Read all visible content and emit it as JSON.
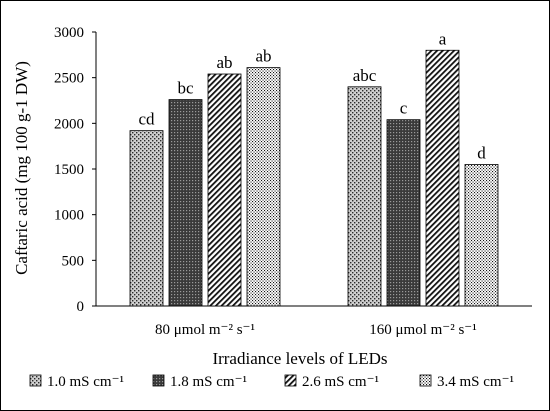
{
  "chart_data": {
    "type": "bar",
    "title": "",
    "xlabel": "Irradiance levels of LEDs",
    "ylabel": "Caftaric acid (mg 100 g-1 DW)",
    "ylim": [
      0,
      3000
    ],
    "yticks": [
      "0",
      "500",
      "1000",
      "1500",
      "2000",
      "2500",
      "3000"
    ],
    "grid": false,
    "legend_position": "bottom",
    "categories": [
      "80 μmol m⁻² s⁻¹",
      "160 μmol m⁻² s⁻¹"
    ],
    "series": [
      {
        "name": "1.0 mS cm⁻¹",
        "pattern": "dots-sparse",
        "values": [
          1920,
          2400
        ],
        "letters": [
          "cd",
          "abc"
        ]
      },
      {
        "name": "1.8 mS cm⁻¹",
        "pattern": "grid-dark",
        "values": [
          2260,
          2040
        ],
        "letters": [
          "bc",
          "c"
        ]
      },
      {
        "name": "2.6 mS cm⁻¹",
        "pattern": "diagonal",
        "values": [
          2540,
          2800
        ],
        "letters": [
          "ab",
          "a"
        ]
      },
      {
        "name": "3.4 mS cm⁻¹",
        "pattern": "dots-dense",
        "values": [
          2610,
          1550
        ],
        "letters": [
          "ab",
          "d"
        ]
      }
    ]
  },
  "colors": {
    "axis": "#000000",
    "bar_stroke": "#000000",
    "background": "#ffffff"
  }
}
